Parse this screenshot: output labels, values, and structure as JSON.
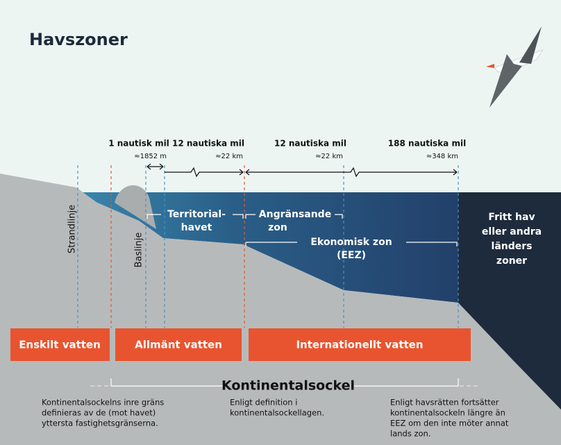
{
  "title": "Havszoner",
  "distances": [
    {
      "label": "1 nautisk mil",
      "sub": "≈1852 m"
    },
    {
      "label": "12 nautiska mil",
      "sub": "≈22 km"
    },
    {
      "label": "12 nautiska mil",
      "sub": "≈22 km"
    },
    {
      "label": "188 nautiska mil",
      "sub": "≈348 km"
    }
  ],
  "lines": [
    "Strandlinje",
    "Baslinje"
  ],
  "zones": {
    "territorial": [
      "Territorial-",
      "havet"
    ],
    "contiguous": [
      "Angränsande",
      "zon"
    ],
    "eez": [
      "Ekonomisk zon",
      "(EEZ)"
    ],
    "high_seas": [
      "Fritt hav",
      "eller andra",
      "länders",
      "zoner"
    ]
  },
  "ownership": [
    "Enskilt vatten",
    "Allmänt vatten",
    "Internationellt vatten"
  ],
  "shelf": {
    "title": "Kontinentalsockel",
    "notes": [
      [
        "Kontinentalsockelns inre gräns",
        "definieras av de (mot havet)",
        "yttersta fastighetsgränserna."
      ],
      [
        "Enligt definition i",
        "kontinentalsockellagen."
      ],
      [
        "Enligt havsrätten fortsätter",
        "kontinentalsockeln längre än",
        "EEZ om den inte möter annat",
        "lands zon."
      ]
    ]
  }
}
